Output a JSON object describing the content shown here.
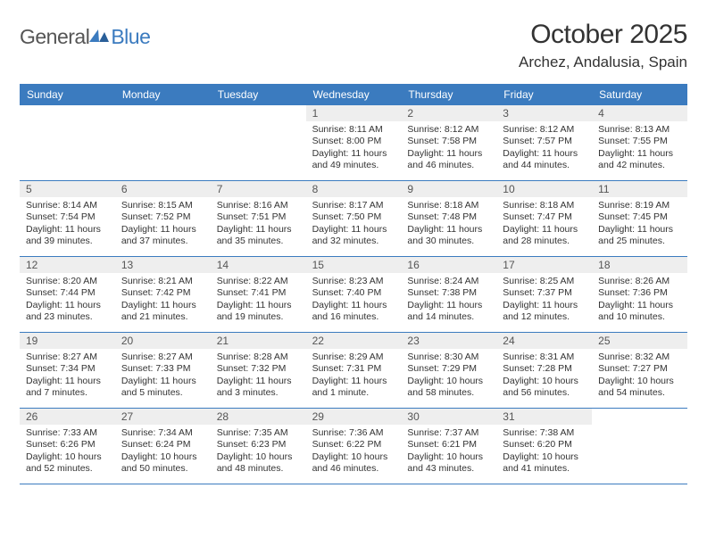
{
  "logo": {
    "general": "General",
    "blue": "Blue"
  },
  "title": "October 2025",
  "location": "Archez, Andalusia, Spain",
  "colors": {
    "accent": "#3b7bbf",
    "dayNumBg": "#eeeeee",
    "text": "#333333"
  },
  "dayHeaders": [
    "Sunday",
    "Monday",
    "Tuesday",
    "Wednesday",
    "Thursday",
    "Friday",
    "Saturday"
  ],
  "weeks": [
    [
      null,
      null,
      null,
      {
        "n": "1",
        "sr": "Sunrise: 8:11 AM",
        "ss": "Sunset: 8:00 PM",
        "dl": "Daylight: 11 hours and 49 minutes."
      },
      {
        "n": "2",
        "sr": "Sunrise: 8:12 AM",
        "ss": "Sunset: 7:58 PM",
        "dl": "Daylight: 11 hours and 46 minutes."
      },
      {
        "n": "3",
        "sr": "Sunrise: 8:12 AM",
        "ss": "Sunset: 7:57 PM",
        "dl": "Daylight: 11 hours and 44 minutes."
      },
      {
        "n": "4",
        "sr": "Sunrise: 8:13 AM",
        "ss": "Sunset: 7:55 PM",
        "dl": "Daylight: 11 hours and 42 minutes."
      }
    ],
    [
      {
        "n": "5",
        "sr": "Sunrise: 8:14 AM",
        "ss": "Sunset: 7:54 PM",
        "dl": "Daylight: 11 hours and 39 minutes."
      },
      {
        "n": "6",
        "sr": "Sunrise: 8:15 AM",
        "ss": "Sunset: 7:52 PM",
        "dl": "Daylight: 11 hours and 37 minutes."
      },
      {
        "n": "7",
        "sr": "Sunrise: 8:16 AM",
        "ss": "Sunset: 7:51 PM",
        "dl": "Daylight: 11 hours and 35 minutes."
      },
      {
        "n": "8",
        "sr": "Sunrise: 8:17 AM",
        "ss": "Sunset: 7:50 PM",
        "dl": "Daylight: 11 hours and 32 minutes."
      },
      {
        "n": "9",
        "sr": "Sunrise: 8:18 AM",
        "ss": "Sunset: 7:48 PM",
        "dl": "Daylight: 11 hours and 30 minutes."
      },
      {
        "n": "10",
        "sr": "Sunrise: 8:18 AM",
        "ss": "Sunset: 7:47 PM",
        "dl": "Daylight: 11 hours and 28 minutes."
      },
      {
        "n": "11",
        "sr": "Sunrise: 8:19 AM",
        "ss": "Sunset: 7:45 PM",
        "dl": "Daylight: 11 hours and 25 minutes."
      }
    ],
    [
      {
        "n": "12",
        "sr": "Sunrise: 8:20 AM",
        "ss": "Sunset: 7:44 PM",
        "dl": "Daylight: 11 hours and 23 minutes."
      },
      {
        "n": "13",
        "sr": "Sunrise: 8:21 AM",
        "ss": "Sunset: 7:42 PM",
        "dl": "Daylight: 11 hours and 21 minutes."
      },
      {
        "n": "14",
        "sr": "Sunrise: 8:22 AM",
        "ss": "Sunset: 7:41 PM",
        "dl": "Daylight: 11 hours and 19 minutes."
      },
      {
        "n": "15",
        "sr": "Sunrise: 8:23 AM",
        "ss": "Sunset: 7:40 PM",
        "dl": "Daylight: 11 hours and 16 minutes."
      },
      {
        "n": "16",
        "sr": "Sunrise: 8:24 AM",
        "ss": "Sunset: 7:38 PM",
        "dl": "Daylight: 11 hours and 14 minutes."
      },
      {
        "n": "17",
        "sr": "Sunrise: 8:25 AM",
        "ss": "Sunset: 7:37 PM",
        "dl": "Daylight: 11 hours and 12 minutes."
      },
      {
        "n": "18",
        "sr": "Sunrise: 8:26 AM",
        "ss": "Sunset: 7:36 PM",
        "dl": "Daylight: 11 hours and 10 minutes."
      }
    ],
    [
      {
        "n": "19",
        "sr": "Sunrise: 8:27 AM",
        "ss": "Sunset: 7:34 PM",
        "dl": "Daylight: 11 hours and 7 minutes."
      },
      {
        "n": "20",
        "sr": "Sunrise: 8:27 AM",
        "ss": "Sunset: 7:33 PM",
        "dl": "Daylight: 11 hours and 5 minutes."
      },
      {
        "n": "21",
        "sr": "Sunrise: 8:28 AM",
        "ss": "Sunset: 7:32 PM",
        "dl": "Daylight: 11 hours and 3 minutes."
      },
      {
        "n": "22",
        "sr": "Sunrise: 8:29 AM",
        "ss": "Sunset: 7:31 PM",
        "dl": "Daylight: 11 hours and 1 minute."
      },
      {
        "n": "23",
        "sr": "Sunrise: 8:30 AM",
        "ss": "Sunset: 7:29 PM",
        "dl": "Daylight: 10 hours and 58 minutes."
      },
      {
        "n": "24",
        "sr": "Sunrise: 8:31 AM",
        "ss": "Sunset: 7:28 PM",
        "dl": "Daylight: 10 hours and 56 minutes."
      },
      {
        "n": "25",
        "sr": "Sunrise: 8:32 AM",
        "ss": "Sunset: 7:27 PM",
        "dl": "Daylight: 10 hours and 54 minutes."
      }
    ],
    [
      {
        "n": "26",
        "sr": "Sunrise: 7:33 AM",
        "ss": "Sunset: 6:26 PM",
        "dl": "Daylight: 10 hours and 52 minutes."
      },
      {
        "n": "27",
        "sr": "Sunrise: 7:34 AM",
        "ss": "Sunset: 6:24 PM",
        "dl": "Daylight: 10 hours and 50 minutes."
      },
      {
        "n": "28",
        "sr": "Sunrise: 7:35 AM",
        "ss": "Sunset: 6:23 PM",
        "dl": "Daylight: 10 hours and 48 minutes."
      },
      {
        "n": "29",
        "sr": "Sunrise: 7:36 AM",
        "ss": "Sunset: 6:22 PM",
        "dl": "Daylight: 10 hours and 46 minutes."
      },
      {
        "n": "30",
        "sr": "Sunrise: 7:37 AM",
        "ss": "Sunset: 6:21 PM",
        "dl": "Daylight: 10 hours and 43 minutes."
      },
      {
        "n": "31",
        "sr": "Sunrise: 7:38 AM",
        "ss": "Sunset: 6:20 PM",
        "dl": "Daylight: 10 hours and 41 minutes."
      },
      null
    ]
  ]
}
